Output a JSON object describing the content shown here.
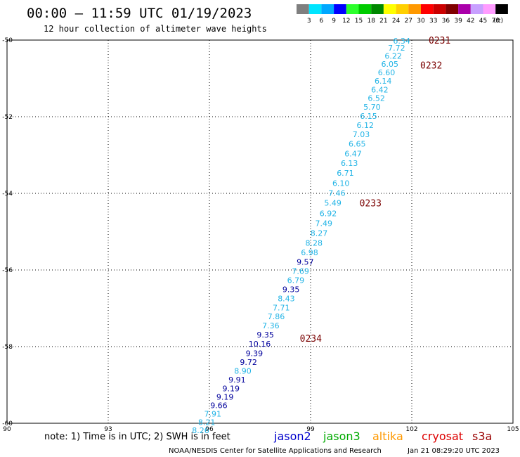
{
  "header": {
    "title": "00:00 – 11:59 UTC 01/19/2023",
    "subtitle": "12 hour collection of altimeter wave heights"
  },
  "colorbar": {
    "unit": "(ft)",
    "bins": [
      {
        "label": "3",
        "color": "#7f7f7f"
      },
      {
        "label": "6",
        "color": "#00e5ff"
      },
      {
        "label": "9",
        "color": "#00a8ff"
      },
      {
        "label": "12",
        "color": "#0000ff"
      },
      {
        "label": "15",
        "color": "#2cff2c"
      },
      {
        "label": "18",
        "color": "#00cc00"
      },
      {
        "label": "21",
        "color": "#008800"
      },
      {
        "label": "24",
        "color": "#ffff00"
      },
      {
        "label": "27",
        "color": "#ffd000"
      },
      {
        "label": "30",
        "color": "#ff9900"
      },
      {
        "label": "33",
        "color": "#ff0000"
      },
      {
        "label": "36",
        "color": "#cc0000"
      },
      {
        "label": "39",
        "color": "#800000"
      },
      {
        "label": "42",
        "color": "#aa00aa"
      },
      {
        "label": "45",
        "color": "#c8a0ff"
      },
      {
        "label": "70",
        "color": "#ff9cff"
      },
      {
        "label": "",
        "color": "#000000"
      }
    ]
  },
  "footer": {
    "note": "note: 1) Time is in UTC; 2) SWH is in feet",
    "satellites": [
      {
        "name": "jason2",
        "color": "#0000cc"
      },
      {
        "name": "jason3",
        "color": "#00aa00"
      },
      {
        "name": "altika",
        "color": "#ff9900"
      },
      {
        "name": "cryosat",
        "color": "#dd0000"
      },
      {
        "name": "s3a",
        "color": "#990000"
      }
    ],
    "credit": "NOAA/NESDIS Center for Satellite Applications and Research",
    "timestamp": "Jan 21 08:29:20 UTC 2023"
  },
  "chart_data": {
    "type": "scatter",
    "title": "00:00 – 11:59 UTC 01/19/2023",
    "subtitle": "12 hour collection of altimeter wave heights",
    "xlim": [
      90,
      105
    ],
    "ylim": [
      -60,
      -50
    ],
    "x_ticks": [
      90,
      93,
      96,
      99,
      102,
      105
    ],
    "y_ticks": [
      -50,
      -52,
      -54,
      -56,
      -58,
      -60
    ],
    "y_tick_labels": [
      "-50",
      "-52",
      "-54",
      "-56",
      "-58",
      "-60"
    ],
    "grid": true,
    "light_color": "#22b4e6",
    "dark_color": "#00009c",
    "points": [
      {
        "lon": 101.7,
        "lat": -50.02,
        "v": "6.34"
      },
      {
        "lon": 101.55,
        "lat": -50.2,
        "v": "7.72"
      },
      {
        "lon": 101.45,
        "lat": -50.41,
        "v": "6.22"
      },
      {
        "lon": 101.35,
        "lat": -50.62,
        "v": "6.05"
      },
      {
        "lon": 101.25,
        "lat": -50.84,
        "v": "6.60"
      },
      {
        "lon": 101.15,
        "lat": -51.06,
        "v": "6.14"
      },
      {
        "lon": 101.05,
        "lat": -51.29,
        "v": "6.42"
      },
      {
        "lon": 100.95,
        "lat": -51.51,
        "v": "6.52"
      },
      {
        "lon": 100.82,
        "lat": -51.74,
        "v": "5.70"
      },
      {
        "lon": 100.72,
        "lat": -51.98,
        "v": "6.15"
      },
      {
        "lon": 100.62,
        "lat": -52.22,
        "v": "6.12"
      },
      {
        "lon": 100.5,
        "lat": -52.46,
        "v": "7.03"
      },
      {
        "lon": 100.38,
        "lat": -52.71,
        "v": "6.65"
      },
      {
        "lon": 100.26,
        "lat": -52.96,
        "v": "6.47"
      },
      {
        "lon": 100.15,
        "lat": -53.21,
        "v": "6.13"
      },
      {
        "lon": 100.03,
        "lat": -53.47,
        "v": "6.71"
      },
      {
        "lon": 99.9,
        "lat": -53.73,
        "v": "6.10"
      },
      {
        "lon": 99.78,
        "lat": -53.99,
        "v": "7.46"
      },
      {
        "lon": 99.66,
        "lat": -54.25,
        "v": "5.49"
      },
      {
        "lon": 99.52,
        "lat": -54.52,
        "v": "6.92"
      },
      {
        "lon": 99.39,
        "lat": -54.78,
        "v": "7.49"
      },
      {
        "lon": 99.25,
        "lat": -55.04,
        "v": "8.27"
      },
      {
        "lon": 99.1,
        "lat": -55.29,
        "v": "8.28"
      },
      {
        "lon": 98.97,
        "lat": -55.54,
        "v": "6.98"
      },
      {
        "lon": 98.84,
        "lat": -55.79,
        "v": "9.57",
        "dark": true
      },
      {
        "lon": 98.7,
        "lat": -56.03,
        "v": "7.69"
      },
      {
        "lon": 98.56,
        "lat": -56.27,
        "v": "6.79"
      },
      {
        "lon": 98.42,
        "lat": -56.5,
        "v": "9.35",
        "dark": true
      },
      {
        "lon": 98.28,
        "lat": -56.74,
        "v": "8.43"
      },
      {
        "lon": 98.13,
        "lat": -56.98,
        "v": "7.71"
      },
      {
        "lon": 97.98,
        "lat": -57.21,
        "v": "7.86"
      },
      {
        "lon": 97.82,
        "lat": -57.45,
        "v": "7.36"
      },
      {
        "lon": 97.66,
        "lat": -57.69,
        "v": "9.35",
        "dark": true
      },
      {
        "lon": 97.49,
        "lat": -57.93,
        "v": "10.16",
        "dark": true
      },
      {
        "lon": 97.33,
        "lat": -58.17,
        "v": "9.39",
        "dark": true
      },
      {
        "lon": 97.16,
        "lat": -58.4,
        "v": "9.72",
        "dark": true
      },
      {
        "lon": 96.99,
        "lat": -58.63,
        "v": "8.90"
      },
      {
        "lon": 96.82,
        "lat": -58.86,
        "v": "9.91",
        "dark": true
      },
      {
        "lon": 96.64,
        "lat": -59.09,
        "v": "9.19",
        "dark": true
      },
      {
        "lon": 96.46,
        "lat": -59.31,
        "v": "9.19",
        "dark": true
      },
      {
        "lon": 96.28,
        "lat": -59.53,
        "v": "9.66",
        "dark": true
      },
      {
        "lon": 96.1,
        "lat": -59.75,
        "v": "7.91"
      },
      {
        "lon": 95.92,
        "lat": -59.97,
        "v": "8.21"
      },
      {
        "lon": 95.74,
        "lat": -60.18,
        "v": "8.26"
      }
    ],
    "pass_labels": [
      {
        "lon": 102.5,
        "lat": -50.0,
        "label": "0231"
      },
      {
        "lon": 102.25,
        "lat": -50.65,
        "label": "0232"
      },
      {
        "lon": 100.45,
        "lat": -54.25,
        "label": "0233"
      },
      {
        "lon": 98.68,
        "lat": -57.78,
        "label": "0234"
      }
    ]
  }
}
